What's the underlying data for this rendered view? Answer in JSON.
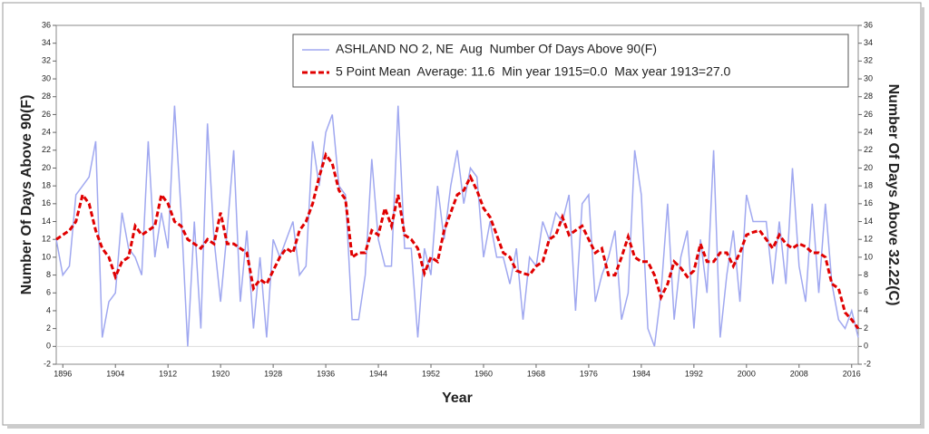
{
  "chart_data": {
    "type": "line",
    "xlabel": "Year",
    "ylabel": "Number Of Days Above 90(F)",
    "y2label": "Number Of Days Above 32.22(C)",
    "x": [
      1895,
      1896,
      1897,
      1898,
      1899,
      1900,
      1901,
      1902,
      1903,
      1904,
      1905,
      1906,
      1907,
      1908,
      1909,
      1910,
      1911,
      1912,
      1913,
      1914,
      1915,
      1916,
      1917,
      1918,
      1919,
      1920,
      1921,
      1922,
      1923,
      1924,
      1925,
      1926,
      1927,
      1928,
      1929,
      1930,
      1931,
      1932,
      1933,
      1934,
      1935,
      1936,
      1937,
      1938,
      1939,
      1940,
      1941,
      1942,
      1943,
      1944,
      1945,
      1946,
      1947,
      1948,
      1949,
      1950,
      1951,
      1952,
      1953,
      1954,
      1955,
      1956,
      1957,
      1958,
      1959,
      1960,
      1961,
      1962,
      1963,
      1964,
      1965,
      1966,
      1967,
      1968,
      1969,
      1970,
      1971,
      1972,
      1973,
      1974,
      1975,
      1976,
      1977,
      1978,
      1979,
      1980,
      1981,
      1982,
      1983,
      1984,
      1985,
      1986,
      1987,
      1988,
      1989,
      1990,
      1991,
      1992,
      1993,
      1994,
      1995,
      1996,
      1997,
      1998,
      1999,
      2000,
      2001,
      2002,
      2003,
      2004,
      2005,
      2006,
      2007,
      2008,
      2009,
      2010,
      2011,
      2012,
      2013,
      2014,
      2015,
      2016,
      2017
    ],
    "series": [
      {
        "name": "ASHLAND NO 2, NE  Aug  Number Of Days Above 90(F)",
        "color": "#a0a8f0",
        "dashed": false,
        "values": [
          12,
          8,
          9,
          17,
          18,
          19,
          23,
          1,
          5,
          6,
          15,
          11,
          10,
          8,
          23,
          10,
          15,
          11,
          27,
          15,
          0,
          14,
          2,
          25,
          12,
          5,
          13,
          22,
          5,
          13,
          2,
          10,
          1,
          12,
          10,
          12,
          14,
          8,
          9,
          23,
          18,
          24,
          26,
          18,
          17,
          3,
          3,
          8,
          21,
          12,
          9,
          9,
          27,
          11,
          11,
          1,
          11,
          8,
          18,
          12,
          18,
          22,
          16,
          20,
          19,
          10,
          14,
          10,
          10,
          7,
          11,
          3,
          10,
          9,
          14,
          12,
          15,
          14,
          17,
          4,
          16,
          17,
          5,
          8,
          10,
          13,
          3,
          6,
          22,
          17,
          2,
          0,
          6,
          16,
          3,
          10,
          13,
          2,
          12,
          6,
          22,
          1,
          8,
          13,
          5,
          17,
          14,
          14,
          14,
          7,
          14,
          7,
          20,
          9,
          5,
          16,
          6,
          16,
          7,
          3,
          2,
          4,
          1
        ]
      },
      {
        "name": "5 Point Mean  Average: 11.6  Min year 1915=0.0  Max year 1913=27.0",
        "color": "#e00000",
        "dashed": true,
        "values": [
          12,
          12.5,
          13,
          14,
          17,
          16,
          13,
          11,
          10,
          7.8,
          9.5,
          10,
          13.5,
          12.5,
          13,
          13.5,
          17,
          16,
          14,
          13.5,
          12,
          11.5,
          11,
          12,
          11.5,
          15,
          11.5,
          11.5,
          11,
          10.5,
          6.5,
          7.5,
          7,
          8.5,
          10,
          11,
          10.5,
          13,
          14,
          16,
          19,
          21.5,
          20.5,
          17.5,
          16.5,
          10,
          10.5,
          10.5,
          13,
          12.5,
          15.5,
          13.5,
          17,
          12.5,
          12,
          11,
          8.2,
          10,
          9.5,
          13,
          15,
          17,
          17.5,
          19,
          17.5,
          15.5,
          14.5,
          12.5,
          10.5,
          10,
          8.5,
          8.2,
          8,
          9,
          9.5,
          12,
          12.5,
          14.5,
          12.5,
          13,
          13.5,
          12,
          10.5,
          11,
          8,
          8,
          10,
          12.3,
          10,
          9.5,
          9.5,
          8,
          5.5,
          7,
          9.5,
          8.8,
          7.8,
          8.5,
          11.5,
          9.5,
          9.5,
          10.5,
          10.5,
          9,
          10.5,
          12.5,
          12.8,
          13,
          12,
          11,
          12.5,
          11.5,
          11,
          11.5,
          11.2,
          10.5,
          10.5,
          10,
          7,
          6.5,
          3.8,
          3,
          2
        ]
      }
    ],
    "xlim": [
      1895,
      2017
    ],
    "xticks": [
      1896,
      1904,
      1912,
      1920,
      1928,
      1936,
      1944,
      1952,
      1960,
      1968,
      1976,
      1984,
      1992,
      2000,
      2008,
      2016
    ],
    "ylim": [
      -2,
      36
    ],
    "yticks": [
      -2,
      0,
      2,
      4,
      6,
      8,
      10,
      12,
      14,
      16,
      18,
      20,
      22,
      24,
      26,
      28,
      30,
      32,
      34,
      36
    ],
    "y2lim": [
      -2,
      36
    ],
    "y2ticks": [
      -2,
      0,
      2,
      4,
      6,
      8,
      10,
      12,
      14,
      16,
      18,
      20,
      22,
      24,
      26,
      28,
      30,
      32,
      34,
      36
    ],
    "legend": "top-right"
  }
}
